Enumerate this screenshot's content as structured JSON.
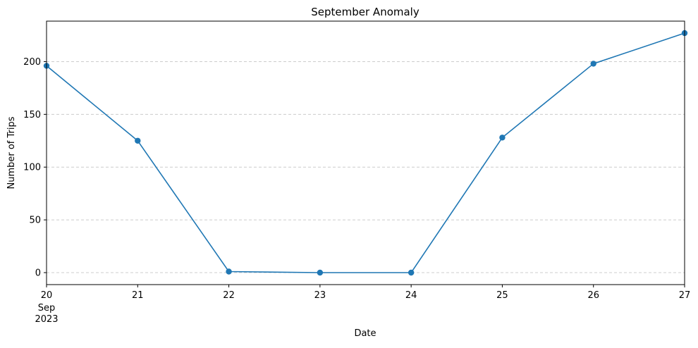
{
  "chart_data": {
    "type": "line",
    "title": "September Anomaly",
    "xlabel": "Date",
    "ylabel": "Number of Trips",
    "x": [
      "2023-09-20",
      "2023-09-21",
      "2023-09-22",
      "2023-09-23",
      "2023-09-24",
      "2023-09-25",
      "2023-09-26",
      "2023-09-27"
    ],
    "x_tick_labels": [
      "20",
      "21",
      "22",
      "23",
      "24",
      "25",
      "26",
      "27"
    ],
    "x_tick_sublabels": {
      "month": "Sep",
      "year": "2023"
    },
    "series": [
      {
        "values": [
          196,
          125,
          1,
          0,
          0,
          128,
          198,
          227
        ],
        "color": "#1f77b4",
        "marker": "circle"
      }
    ],
    "y_ticks": [
      0,
      50,
      100,
      150,
      200
    ],
    "ylim": [
      -11.35,
      238.35
    ],
    "grid": {
      "y": true,
      "x": false,
      "style": "dashed",
      "color": "#cccccc"
    }
  }
}
